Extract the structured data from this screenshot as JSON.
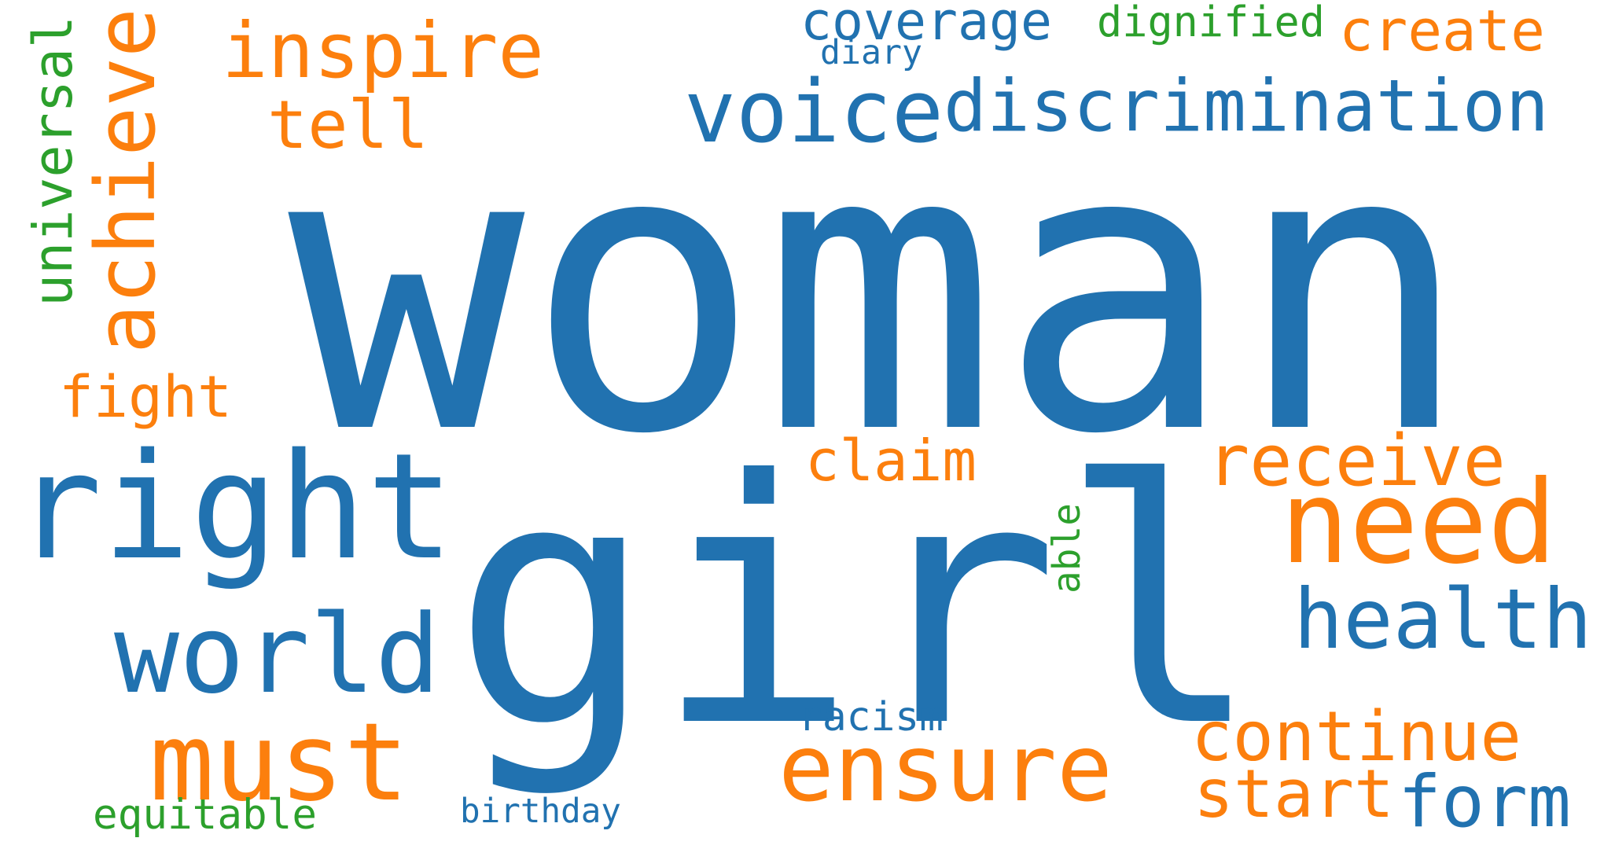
{
  "palette": {
    "blue": "#2172b0",
    "orange": "#fc7f0d",
    "green": "#2ca02c"
  },
  "words": [
    {
      "text": "woman",
      "color": "blue"
    },
    {
      "text": "girl",
      "color": "blue"
    },
    {
      "text": "right",
      "color": "blue"
    },
    {
      "text": "need",
      "color": "orange"
    },
    {
      "text": "voice",
      "color": "blue"
    },
    {
      "text": "discrimination",
      "color": "blue"
    },
    {
      "text": "inspire",
      "color": "orange"
    },
    {
      "text": "achieve",
      "color": "orange"
    },
    {
      "text": "world",
      "color": "blue"
    },
    {
      "text": "must",
      "color": "orange"
    },
    {
      "text": "ensure",
      "color": "orange"
    },
    {
      "text": "health",
      "color": "blue"
    },
    {
      "text": "receive",
      "color": "orange"
    },
    {
      "text": "continue",
      "color": "orange"
    },
    {
      "text": "form",
      "color": "blue"
    },
    {
      "text": "tell",
      "color": "orange"
    },
    {
      "text": "coverage",
      "color": "blue"
    },
    {
      "text": "create",
      "color": "orange"
    },
    {
      "text": "fight",
      "color": "orange"
    },
    {
      "text": "claim",
      "color": "orange"
    },
    {
      "text": "start",
      "color": "orange"
    },
    {
      "text": "universal",
      "color": "green"
    },
    {
      "text": "dignified",
      "color": "green"
    },
    {
      "text": "equitable",
      "color": "green"
    },
    {
      "text": "racism",
      "color": "blue"
    },
    {
      "text": "birthday",
      "color": "blue"
    },
    {
      "text": "diary",
      "color": "blue"
    },
    {
      "text": "able",
      "color": "green"
    }
  ]
}
